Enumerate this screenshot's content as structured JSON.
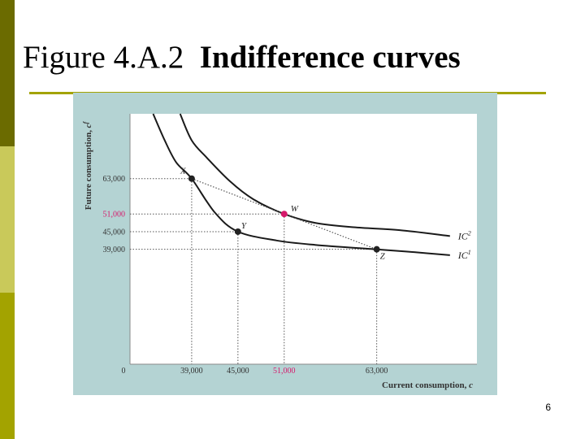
{
  "slide": {
    "title_number": "Figure 4.A.2",
    "title_name": "Indifference curves",
    "page_number": "6",
    "colors": {
      "accent": "#a3a300",
      "figure_background": "#b4d3d3",
      "highlight": "#d6196b"
    }
  },
  "chart_data": {
    "type": "line",
    "title": "",
    "xlabel": "Current consumption, c",
    "ylabel": "Future consumption, c^f",
    "origin_label": "0",
    "xlim": [
      31000,
      76000
    ],
    "ylim": [
      0,
      85000
    ],
    "grid": false,
    "series": [
      {
        "name": "IC¹",
        "label_main": "IC",
        "label_sup": "1",
        "points": [
          [
            34000,
            85000
          ],
          [
            35500,
            76000
          ],
          [
            37000,
            68500
          ],
          [
            39000,
            63000
          ],
          [
            42000,
            51500
          ],
          [
            45000,
            45000
          ],
          [
            50000,
            42000
          ],
          [
            55000,
            40500
          ],
          [
            63000,
            39000
          ],
          [
            68000,
            38000
          ],
          [
            72500,
            37000
          ]
        ]
      },
      {
        "name": "IC²",
        "label_main": "IC",
        "label_sup": "2",
        "points": [
          [
            37500,
            85000
          ],
          [
            39000,
            76000
          ],
          [
            41000,
            70000
          ],
          [
            44000,
            62000
          ],
          [
            47000,
            56000
          ],
          [
            51000,
            51000
          ],
          [
            55000,
            48000
          ],
          [
            60000,
            46500
          ],
          [
            66000,
            45500
          ],
          [
            72500,
            43500
          ]
        ]
      }
    ],
    "points": [
      {
        "id": "X",
        "label": "X",
        "x": 39000,
        "y": 63000,
        "highlight": false
      },
      {
        "id": "Y",
        "label": "Y",
        "x": 45000,
        "y": 45000,
        "highlight": false
      },
      {
        "id": "W",
        "label": "W",
        "x": 51000,
        "y": 51000,
        "highlight": true
      },
      {
        "id": "Z",
        "label": "Z",
        "x": 63000,
        "y": 39000,
        "highlight": false
      }
    ],
    "x_ticks": [
      {
        "value": 39000,
        "label": "39,000",
        "highlight": false
      },
      {
        "value": 45000,
        "label": "45,000",
        "highlight": false
      },
      {
        "value": 51000,
        "label": "51,000",
        "highlight": true
      },
      {
        "value": 63000,
        "label": "63,000",
        "highlight": false
      }
    ],
    "y_ticks": [
      {
        "value": 63000,
        "label": "63,000",
        "highlight": false
      },
      {
        "value": 51000,
        "label": "51,000",
        "highlight": true
      },
      {
        "value": 45000,
        "label": "45,000",
        "highlight": false
      },
      {
        "value": 39000,
        "label": "39,000",
        "highlight": false
      }
    ],
    "segments": [
      [
        "X",
        "W"
      ],
      [
        "W",
        "Z"
      ]
    ]
  }
}
